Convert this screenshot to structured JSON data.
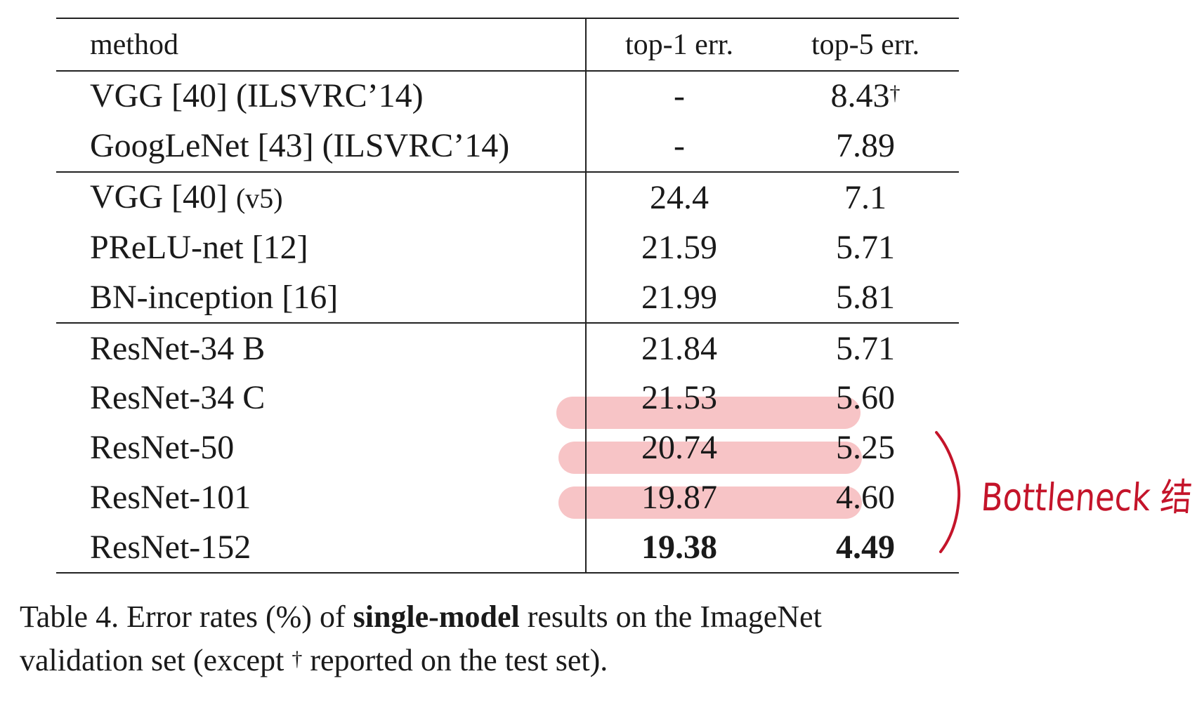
{
  "table": {
    "headers": {
      "method": "method",
      "top1": "top-1 err.",
      "top5": "top-5 err."
    },
    "rows": [
      {
        "method": "VGG [40] (ILSVRC’14)",
        "top1": "-",
        "top5": "8.43",
        "top5_mark": "†"
      },
      {
        "method": "GoogLeNet [43] (ILSVRC’14)",
        "top1": "-",
        "top5": "7.89"
      },
      {
        "method": "VGG [40]",
        "method_suffix": "(v5)",
        "top1": "24.4",
        "top5": "7.1"
      },
      {
        "method": "PReLU-net [12]",
        "top1": "21.59",
        "top5": "5.71"
      },
      {
        "method": "BN-inception [16]",
        "top1": "21.99",
        "top5": "5.81"
      },
      {
        "method": "ResNet-34 B",
        "top1": "21.84",
        "top5": "5.71"
      },
      {
        "method": "ResNet-34 C",
        "top1": "21.53",
        "top5": "5.60"
      },
      {
        "method": "ResNet-50",
        "top1": "20.74",
        "top5": "5.25"
      },
      {
        "method": "ResNet-101",
        "top1": "19.87",
        "top5": "4.60"
      },
      {
        "method": "ResNet-152",
        "top1": "19.38",
        "top5": "4.49"
      }
    ]
  },
  "caption": {
    "prefix": "Table 4. Error rates (%) of ",
    "bold": "single-model",
    "middle": " results on the ImageNet",
    "line2_start": "validation set (except ",
    "dagger": "†",
    "line2_end": " reported on the test set)."
  },
  "annotation": {
    "text": "Bottleneck 结"
  },
  "colors": {
    "highlight": "#f7c4c6",
    "annotation_ink": "#c4142a",
    "rule": "#222222"
  }
}
